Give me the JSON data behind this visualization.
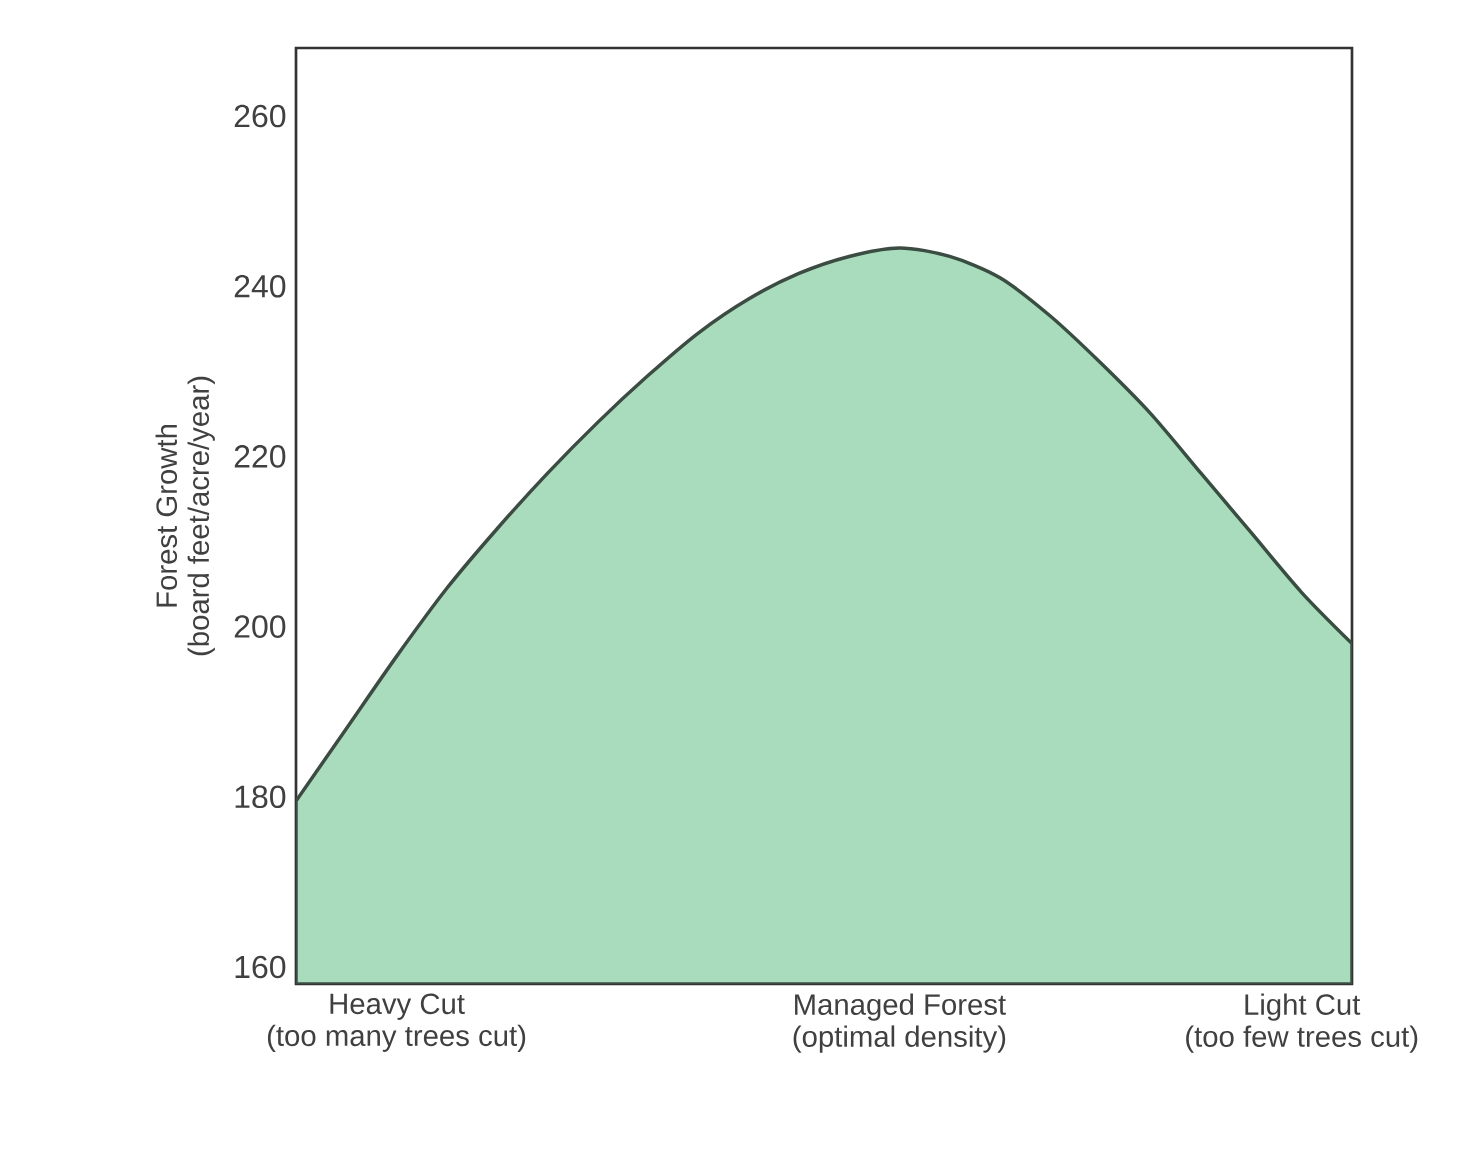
{
  "chart_data": {
    "type": "area",
    "ylabel": "Forest Growth\n(board feet/acre/year)",
    "categories": [
      null,
      null,
      "Heavy Cut\n(too many trees cut)",
      null,
      null,
      null,
      null,
      null,
      null,
      null,
      null,
      null,
      "Managed Forest\n(optimal density)",
      null,
      null,
      null,
      null,
      null,
      null,
      null,
      "Light Cut\n(too few trees cut)",
      null
    ],
    "values": [
      179.5,
      188,
      196.5,
      204.5,
      211.5,
      218,
      224,
      229.5,
      234.5,
      238.5,
      241.5,
      243.5,
      244.5,
      243.5,
      241,
      236.5,
      231,
      225,
      218,
      211,
      204,
      198
    ],
    "color": "#a8dcbc",
    "ylim": [
      158,
      268
    ],
    "yticks": [
      160,
      180,
      200,
      220,
      240,
      260
    ]
  }
}
